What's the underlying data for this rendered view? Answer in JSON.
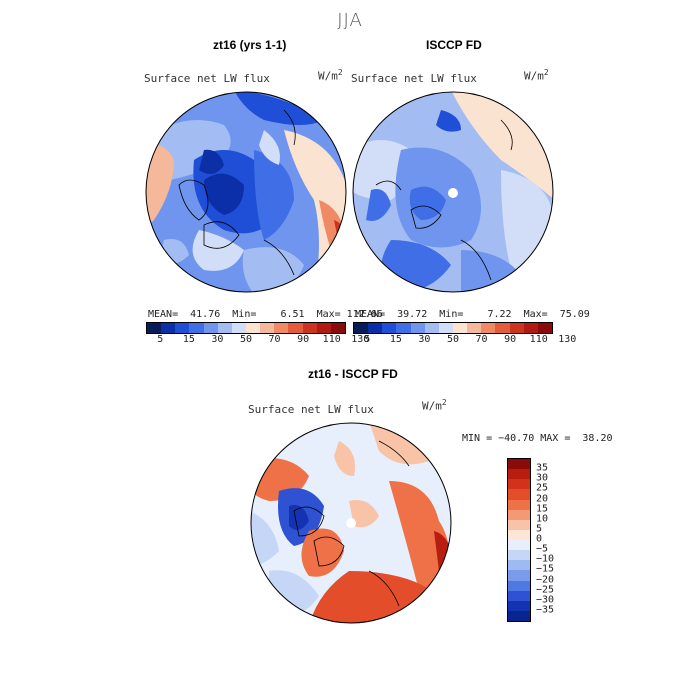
{
  "season": "JJA",
  "panels": {
    "left": {
      "title": "zt16 (yrs 1-1)",
      "variable": "Surface net LW flux",
      "unit_base": "W/m",
      "unit_exp": "2",
      "stats": "MEAN=  41.76  Min=    6.51  Max= 112.66"
    },
    "right": {
      "title": "ISCCP FD",
      "variable": "Surface net LW flux",
      "unit_base": "W/m",
      "unit_exp": "2",
      "stats": "MEAN=  39.72  Min=    7.22  Max=  75.09"
    },
    "diff": {
      "title": "zt16 - ISCCP FD",
      "variable": "Surface net LW flux",
      "unit_base": "W/m",
      "unit_exp": "2",
      "stats": "MIN = −40.70 MAX =  38.20"
    }
  },
  "colorbar_abs": {
    "tick_labels": [
      "5",
      "15",
      "30",
      "50",
      "70",
      "90",
      "110",
      "130"
    ],
    "colors": [
      "#081d58",
      "#0b2fa6",
      "#1f4fd6",
      "#3f6ee6",
      "#6f95ee",
      "#a3bdf3",
      "#d2ddf7",
      "#fbe3d2",
      "#f6b89a",
      "#ef8a64",
      "#e45c3a",
      "#cc3420",
      "#b01a12",
      "#8b0a0a"
    ]
  },
  "colorbar_diff": {
    "tick_labels": [
      "35",
      "30",
      "25",
      "20",
      "15",
      "10",
      "5",
      "0",
      "−5",
      "−10",
      "−15",
      "−20",
      "−25",
      "−30",
      "−35"
    ],
    "colors": [
      "#8b0a0a",
      "#b81d10",
      "#d2321a",
      "#e34d2a",
      "#ee7148",
      "#f39a74",
      "#f8c3a6",
      "#fde6d6",
      "#e7eefc",
      "#c6d6f7",
      "#9fb9f1",
      "#7a9bea",
      "#5078e2",
      "#2e52d2",
      "#1433b3",
      "#08248f"
    ]
  },
  "chart_data": [
    {
      "type": "heatmap",
      "title": "zt16 (yrs 1-1)",
      "projection": "north polar stereographic",
      "variable": "Surface net LW flux",
      "units": "W/m2",
      "mean": 41.76,
      "min": 6.51,
      "max": 112.66,
      "levels": [
        5,
        15,
        30,
        50,
        70,
        90,
        110,
        130
      ]
    },
    {
      "type": "heatmap",
      "title": "ISCCP FD",
      "projection": "north polar stereographic",
      "variable": "Surface net LW flux",
      "units": "W/m2",
      "mean": 39.72,
      "min": 7.22,
      "max": 75.09,
      "levels": [
        5,
        15,
        30,
        50,
        70,
        90,
        110,
        130
      ]
    },
    {
      "type": "heatmap",
      "title": "zt16 - ISCCP FD",
      "projection": "north polar stereographic",
      "variable": "Surface net LW flux",
      "units": "W/m2",
      "min": -40.7,
      "max": 38.2,
      "levels": [
        -35,
        -30,
        -25,
        -20,
        -15,
        -10,
        -5,
        0,
        5,
        10,
        15,
        20,
        25,
        30,
        35
      ]
    }
  ]
}
